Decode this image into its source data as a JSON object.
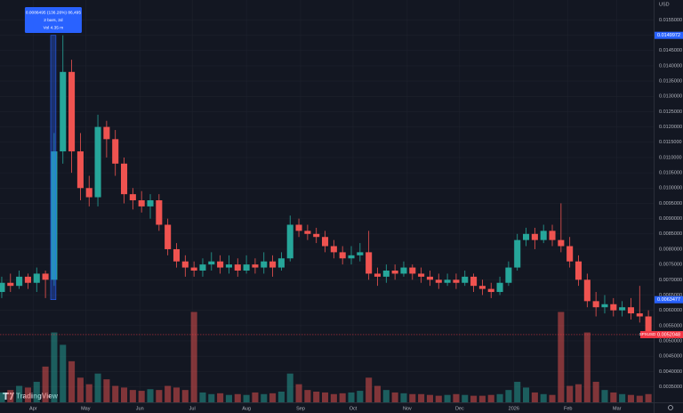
{
  "chart_data": {
    "type": "candlestick",
    "currency": "USD",
    "logo": "TradingView",
    "x": [
      -18,
      -13,
      -8,
      -3,
      2,
      7,
      12,
      17,
      22,
      27,
      32,
      37,
      42,
      47,
      52,
      57,
      62,
      67,
      72,
      77,
      82,
      87,
      92,
      97,
      102,
      107,
      112,
      117,
      122,
      127,
      132,
      137,
      142,
      147,
      152,
      157,
      162,
      167,
      172,
      177,
      182,
      187,
      192,
      197,
      202,
      207,
      212,
      217,
      222,
      227,
      232,
      237,
      242,
      247,
      252,
      257,
      262,
      267,
      272,
      277,
      282,
      287,
      292,
      297,
      302,
      307,
      312,
      317,
      322,
      327,
      332,
      337,
      342,
      347,
      352
    ],
    "open": [
      0.0066,
      0.0069,
      0.0068,
      0.0071,
      0.0069,
      0.0072,
      0.007,
      0.0112,
      0.0138,
      0.0112,
      0.01,
      0.0097,
      0.012,
      0.0116,
      0.0108,
      0.0098,
      0.0096,
      0.0094,
      0.0096,
      0.0088,
      0.008,
      0.0076,
      0.0074,
      0.0073,
      0.0075,
      0.0076,
      0.0074,
      0.0075,
      0.0073,
      0.0075,
      0.0074,
      0.0076,
      0.0074,
      0.0077,
      0.0088,
      0.0086,
      0.0085,
      0.0084,
      0.0081,
      0.0079,
      0.0077,
      0.0078,
      0.0079,
      0.0072,
      0.0071,
      0.0073,
      0.0072,
      0.0074,
      0.0072,
      0.0071,
      0.007,
      0.0069,
      0.007,
      0.0069,
      0.0071,
      0.0068,
      0.0067,
      0.0066,
      0.0069,
      0.0074,
      0.0083,
      0.0085,
      0.0083,
      0.0086,
      0.0083,
      0.0081,
      0.0076,
      0.007,
      0.0063,
      0.0061,
      0.0062,
      0.006,
      0.0061,
      0.0059,
      0.0058
    ],
    "high": [
      0.0071,
      0.0072,
      0.0073,
      0.0072,
      0.0074,
      0.0073,
      0.0118,
      0.015,
      0.0142,
      0.0118,
      0.0104,
      0.0124,
      0.0122,
      0.0119,
      0.011,
      0.01,
      0.0099,
      0.0098,
      0.0098,
      0.009,
      0.0082,
      0.0078,
      0.0076,
      0.0077,
      0.0079,
      0.0078,
      0.0078,
      0.0077,
      0.0078,
      0.0077,
      0.0079,
      0.0078,
      0.0079,
      0.0091,
      0.009,
      0.0088,
      0.0087,
      0.0086,
      0.0083,
      0.0081,
      0.0081,
      0.0082,
      0.0086,
      0.0074,
      0.0075,
      0.0075,
      0.0076,
      0.0075,
      0.0074,
      0.0073,
      0.0072,
      0.0072,
      0.0072,
      0.0073,
      0.0072,
      0.007,
      0.0069,
      0.0071,
      0.0076,
      0.0085,
      0.0087,
      0.0087,
      0.0088,
      0.0088,
      0.0095,
      0.0084,
      0.0078,
      0.0072,
      0.0066,
      0.0065,
      0.0064,
      0.0063,
      0.0064,
      0.0068,
      0.006
    ],
    "low": [
      0.0064,
      0.0066,
      0.0067,
      0.0067,
      0.0066,
      0.0064,
      0.0068,
      0.0108,
      0.0105,
      0.0096,
      0.0094,
      0.0094,
      0.011,
      0.0104,
      0.0095,
      0.0093,
      0.0092,
      0.009,
      0.0086,
      0.0078,
      0.0074,
      0.0071,
      0.0071,
      0.0071,
      0.0073,
      0.0072,
      0.0072,
      0.0071,
      0.0072,
      0.0072,
      0.0072,
      0.0071,
      0.0073,
      0.0076,
      0.0084,
      0.0083,
      0.0082,
      0.0079,
      0.0077,
      0.0075,
      0.0075,
      0.0076,
      0.007,
      0.0068,
      0.0069,
      0.007,
      0.0071,
      0.007,
      0.0069,
      0.0068,
      0.0067,
      0.0068,
      0.0067,
      0.0068,
      0.0066,
      0.0065,
      0.0064,
      0.0065,
      0.0068,
      0.0073,
      0.0081,
      0.008,
      0.0082,
      0.0081,
      0.0079,
      0.0074,
      0.0068,
      0.0061,
      0.0058,
      0.0059,
      0.0058,
      0.0058,
      0.0057,
      0.0056,
      0.0051
    ],
    "close": [
      0.0069,
      0.0068,
      0.0071,
      0.0069,
      0.0072,
      0.007,
      0.0112,
      0.0138,
      0.0112,
      0.01,
      0.0097,
      0.012,
      0.0116,
      0.0108,
      0.0098,
      0.0096,
      0.0094,
      0.0096,
      0.0088,
      0.008,
      0.0076,
      0.0074,
      0.0073,
      0.0075,
      0.0076,
      0.0074,
      0.0075,
      0.0073,
      0.0075,
      0.0074,
      0.0076,
      0.0074,
      0.0077,
      0.0088,
      0.0086,
      0.0085,
      0.0084,
      0.0081,
      0.0079,
      0.0077,
      0.0078,
      0.0079,
      0.0072,
      0.0071,
      0.0073,
      0.0072,
      0.0074,
      0.0072,
      0.0071,
      0.007,
      0.0069,
      0.007,
      0.0069,
      0.0071,
      0.0068,
      0.0067,
      0.0066,
      0.0069,
      0.0074,
      0.0083,
      0.0085,
      0.0083,
      0.0086,
      0.0083,
      0.0081,
      0.0076,
      0.007,
      0.0063,
      0.0061,
      0.0062,
      0.006,
      0.0061,
      0.0059,
      0.0058,
      0.0052
    ],
    "volume": [
      1.2,
      1.5,
      2.0,
      1.8,
      2.5,
      4.35,
      8.5,
      7.0,
      5.0,
      3.0,
      2.2,
      3.5,
      2.8,
      2.0,
      1.8,
      1.5,
      1.4,
      1.6,
      1.5,
      2.0,
      1.8,
      1.5,
      11.0,
      1.2,
      1.0,
      1.1,
      0.9,
      1.0,
      0.9,
      1.2,
      1.0,
      1.1,
      1.3,
      3.5,
      2.2,
      1.5,
      1.3,
      1.2,
      1.0,
      1.1,
      1.2,
      1.4,
      3.0,
      2.0,
      1.5,
      1.2,
      1.1,
      1.0,
      1.0,
      0.9,
      0.8,
      0.9,
      1.0,
      0.9,
      0.8,
      0.8,
      0.9,
      1.0,
      1.5,
      2.5,
      1.8,
      1.2,
      1.0,
      0.9,
      11.0,
      2.0,
      2.2,
      8.5,
      2.5,
      1.5,
      1.2,
      1.0,
      0.9,
      0.8,
      1.0
    ],
    "up_color": "#26a69a",
    "down_color": "#ef5350",
    "grid": true,
    "xlim": [
      -19,
      355
    ],
    "ylim": [
      0.00299,
      0.016153
    ],
    "vlim": [
      0,
      13
    ],
    "xticks": [
      {
        "value": 0,
        "label": "Apr"
      },
      {
        "value": 30,
        "label": "May"
      },
      {
        "value": 61,
        "label": "Jun"
      },
      {
        "value": 91,
        "label": "Jul"
      },
      {
        "value": 122,
        "label": "Aug"
      },
      {
        "value": 153,
        "label": "Sep"
      },
      {
        "value": 183,
        "label": "Oct"
      },
      {
        "value": 214,
        "label": "Nov"
      },
      {
        "value": 244,
        "label": "Dec"
      },
      {
        "value": 275,
        "label": "2026"
      },
      {
        "value": 306,
        "label": "Feb"
      },
      {
        "value": 334,
        "label": "Mar"
      }
    ],
    "yticks": [
      {
        "value": 0.0035,
        "label": "0.0035000"
      },
      {
        "value": 0.004,
        "label": "0.0040000"
      },
      {
        "value": 0.0045,
        "label": "0.0045000"
      },
      {
        "value": 0.005,
        "label": "0.0050000"
      },
      {
        "value": 0.0055,
        "label": "0.0055000"
      },
      {
        "value": 0.006,
        "label": "0.0060000"
      },
      {
        "value": 0.0065,
        "label": "0.0065000"
      },
      {
        "value": 0.007,
        "label": "0.0070000"
      },
      {
        "value": 0.0075,
        "label": "0.0075000"
      },
      {
        "value": 0.008,
        "label": "0.0080000"
      },
      {
        "value": 0.0085,
        "label": "0.0085000"
      },
      {
        "value": 0.009,
        "label": "0.0090000"
      },
      {
        "value": 0.0095,
        "label": "0.0095000"
      },
      {
        "value": 0.01,
        "label": "0.0100000"
      },
      {
        "value": 0.0105,
        "label": "0.0105000"
      },
      {
        "value": 0.011,
        "label": "0.0110000"
      },
      {
        "value": 0.0115,
        "label": "0.0115000"
      },
      {
        "value": 0.012,
        "label": "0.0120000"
      },
      {
        "value": 0.0125,
        "label": "0.0125000"
      },
      {
        "value": 0.013,
        "label": "0.0130000"
      },
      {
        "value": 0.0135,
        "label": "0.0135000"
      },
      {
        "value": 0.014,
        "label": "0.0140000"
      },
      {
        "value": 0.0145,
        "label": "0.0145000"
      },
      {
        "value": 0.015,
        "label": "0.0150000"
      },
      {
        "value": 0.0155,
        "label": "0.0155000"
      }
    ],
    "price_labels": [
      {
        "value": 0.0149972,
        "label": "0.0149972",
        "color": "#2962ff"
      },
      {
        "value": 0.0063477,
        "label": "0.0063477",
        "color": "#2962ff"
      }
    ],
    "last_price": {
      "symbol": "SPXUSD",
      "value": 0.0052048,
      "label": "0.0052048",
      "color": "#f23645"
    },
    "measure": {
      "x_range": [
        10,
        13
      ],
      "color": "#2962ff",
      "lines": [
        "0.0086495 (136.26%) 86,495",
        "2 bars, 2d",
        "Vol 4.35 m"
      ]
    }
  }
}
